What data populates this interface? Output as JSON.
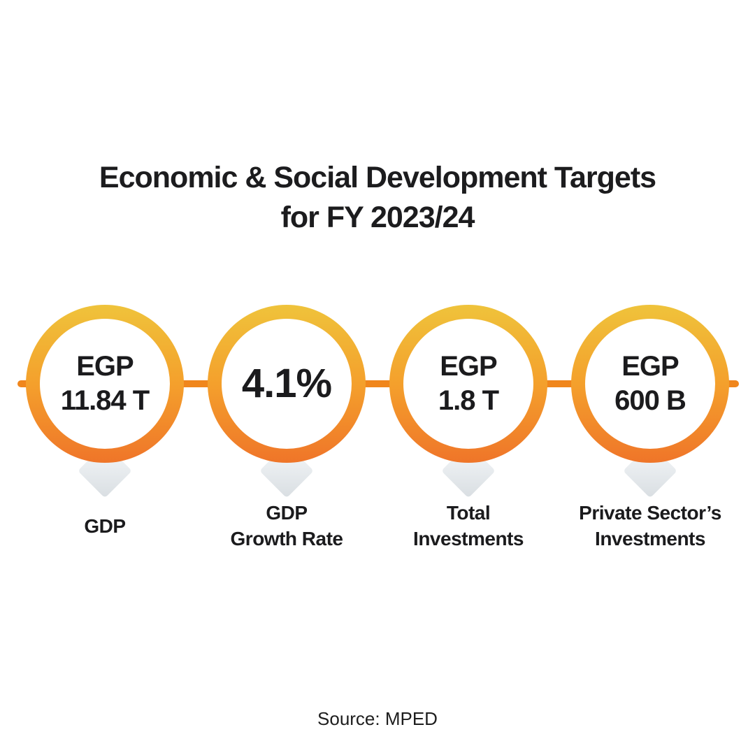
{
  "title": {
    "line1": "Economic & Social Development Targets",
    "line2": "for FY 2023/24"
  },
  "metrics": [
    {
      "value_line1": "EGP",
      "value_line2": "11.84 T",
      "label_line1": "GDP",
      "label_line2": ""
    },
    {
      "value_line1": "4.1%",
      "value_line2": "",
      "label_line1": "GDP",
      "label_line2": "Growth Rate"
    },
    {
      "value_line1": "EGP",
      "value_line2": "1.8 T",
      "label_line1": "Total",
      "label_line2": "Investments"
    },
    {
      "value_line1": "EGP",
      "value_line2": "600 B",
      "label_line1": "Private Sector’s",
      "label_line2": "Investments"
    }
  ],
  "source": "Source: MPED",
  "colors": {
    "ring_gradient_top": "#EFC33B",
    "ring_gradient_mid": "#F4A02C",
    "ring_gradient_bottom": "#EF7529",
    "connector_line": "#F0861C",
    "pin_tail": "#E6EAED",
    "text": "#1C1C1E",
    "background": "#FFFFFF"
  },
  "chart_data": {
    "type": "table",
    "title": "Economic & Social Development Targets for FY 2023/24",
    "categories": [
      "GDP",
      "GDP Growth Rate",
      "Total Investments",
      "Private Sector’s Investments"
    ],
    "values": [
      "EGP 11.84 T",
      "4.1%",
      "EGP 1.8 T",
      "EGP 600 B"
    ],
    "numeric_values": [
      11.84,
      4.1,
      1.8,
      600
    ],
    "units": [
      "EGP trillion",
      "percent",
      "EGP trillion",
      "EGP billion"
    ],
    "source": "MPED",
    "layout": "four circular KPI badges connected by a horizontal line, labels below"
  }
}
